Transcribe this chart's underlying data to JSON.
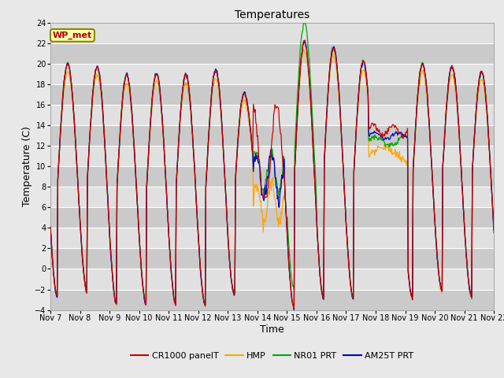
{
  "title": "Temperatures",
  "xlabel": "Time",
  "ylabel": "Temperature (C)",
  "ylim": [
    -4,
    24
  ],
  "yticks": [
    -4,
    -2,
    0,
    2,
    4,
    6,
    8,
    10,
    12,
    14,
    16,
    18,
    20,
    22,
    24
  ],
  "bg_color": "#e8e8e8",
  "plot_bg_color": "#d8d8d8",
  "band_color_light": "#e0e0e0",
  "band_color_dark": "#cacaca",
  "grid_color": "#ffffff",
  "colors": {
    "CR1000 panelT": "#cc0000",
    "HMP": "#ffa500",
    "NR01 PRT": "#00aa00",
    "AM25T PRT": "#0000cc"
  },
  "legend_label": "WP_met",
  "legend_label_color": "#aa0000",
  "legend_box_facecolor": "#ffffaa",
  "legend_box_edgecolor": "#888800",
  "title_fontsize": 10,
  "axis_fontsize": 9,
  "tick_fontsize": 7
}
